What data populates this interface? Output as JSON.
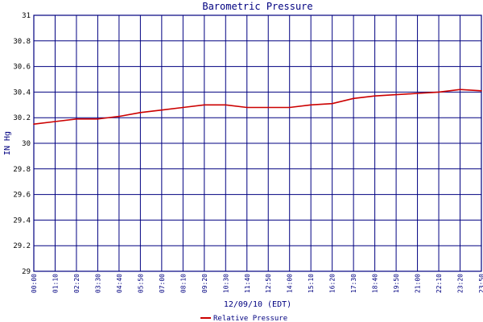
{
  "chart_data": {
    "type": "line",
    "title": "Barometric Pressure",
    "xlabel": "12/09/10 (EDT)",
    "ylabel": "IN Hg",
    "ylim": [
      29,
      31
    ],
    "y_ticks": [
      "29",
      "29.2",
      "29.4",
      "29.6",
      "29.8",
      "30",
      "30.2",
      "30.4",
      "30.6",
      "30.8",
      "31"
    ],
    "x_ticks": [
      "00:00",
      "01:10",
      "02:20",
      "03:30",
      "04:40",
      "05:50",
      "07:00",
      "08:10",
      "09:20",
      "10:30",
      "11:40",
      "12:50",
      "14:00",
      "15:10",
      "16:20",
      "17:30",
      "18:40",
      "19:50",
      "21:00",
      "22:10",
      "23:20",
      "23:50"
    ],
    "grid": true,
    "legend_position": "bottom",
    "series": [
      {
        "name": "Relative Pressure",
        "color": "#cc0000",
        "x": [
          "00:00",
          "01:10",
          "02:20",
          "03:30",
          "04:40",
          "05:50",
          "07:00",
          "08:10",
          "09:20",
          "10:30",
          "11:40",
          "12:50",
          "14:00",
          "15:10",
          "16:20",
          "17:30",
          "18:40",
          "19:50",
          "21:00",
          "22:10",
          "23:20",
          "23:50"
        ],
        "values": [
          30.15,
          30.17,
          30.19,
          30.19,
          30.21,
          30.24,
          30.26,
          30.28,
          30.3,
          30.3,
          30.28,
          30.28,
          30.28,
          30.3,
          30.31,
          30.35,
          30.37,
          30.38,
          30.39,
          30.4,
          30.42,
          30.41
        ]
      }
    ]
  },
  "colors": {
    "grid": "#000080",
    "text": "#000080",
    "background": "#ffffff"
  }
}
